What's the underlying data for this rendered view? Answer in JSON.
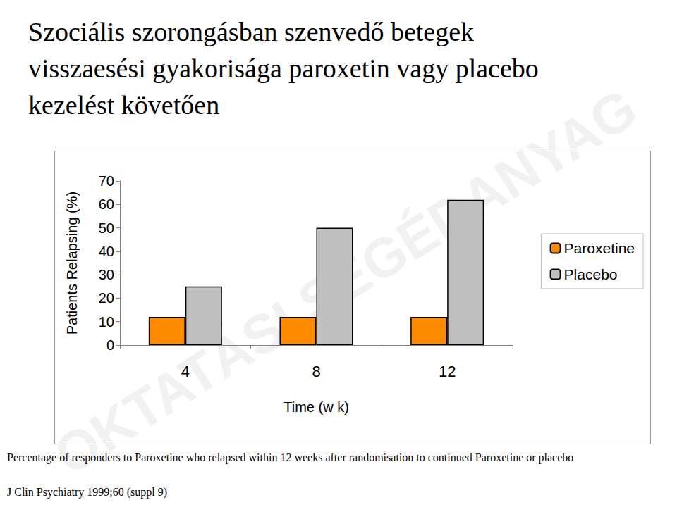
{
  "chart_data": {
    "type": "bar",
    "title": "Szociális szorongásban szenvedő betegek visszaesési gyakorisága paroxetin vagy placebo kezelést követően",
    "x_label": "Time (w k)",
    "y_label": "Patients Relapsing (%)",
    "categories": [
      "4",
      "8",
      "12"
    ],
    "series": [
      {
        "name": "Paroxetine",
        "color": "#ff8c00",
        "values": [
          12,
          12,
          12
        ]
      },
      {
        "name": "Placebo",
        "color": "#c0c0c0",
        "values": [
          25,
          50,
          62
        ]
      }
    ],
    "ylim": [
      0,
      70
    ],
    "yticks": [
      0,
      10,
      20,
      30,
      40,
      50,
      60,
      70
    ],
    "grid": false,
    "legend": "right",
    "annotations": [
      "Percentage of responders to Paroxetine who relapsed within 12 weeks after randomisation to continued Paroxetine or placebo",
      "J Clin Psychiatry 1999;60 (suppl 9)",
      "OKTATÁSI SEGÉDANYAG"
    ]
  }
}
